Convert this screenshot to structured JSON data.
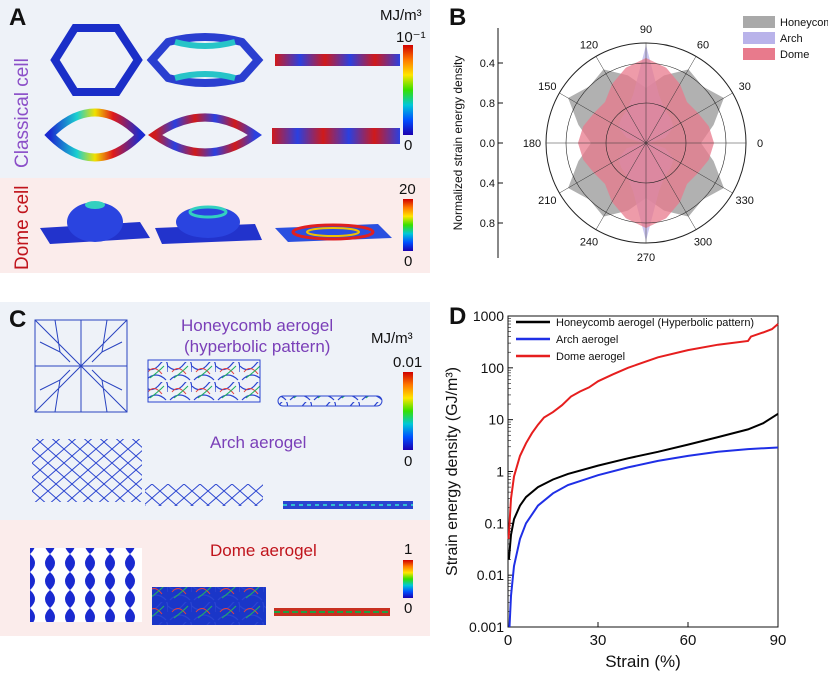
{
  "panels": {
    "A": {
      "letter": "A",
      "classical_label": "Classical cell",
      "dome_label": "Dome cell",
      "colorbar1": {
        "unit": "MJ/m³",
        "max": "10⁻¹",
        "min": "0"
      },
      "colorbar2": {
        "max": "20",
        "min": "0"
      }
    },
    "B": {
      "letter": "B"
    },
    "C": {
      "letter": "C",
      "honeycomb_title_1": "Honeycomb aerogel",
      "honeycomb_title_2": "(hyperbolic pattern)",
      "arch_title": "Arch aerogel",
      "dome_title": "Dome aerogel",
      "colorbar1": {
        "unit": "MJ/m³",
        "max": "0.01",
        "min": "0"
      },
      "colorbar2": {
        "max": "1",
        "min": "0"
      }
    },
    "D": {
      "letter": "D"
    }
  },
  "chart_data": [
    {
      "type": "polar-area",
      "ylabel": "Normalized strain energy density",
      "radial_ticks": [
        "0.4",
        "0.8",
        "0.0",
        "0.4",
        "0.8"
      ],
      "angle_ticks": [
        0,
        30,
        60,
        90,
        120,
        150,
        180,
        210,
        240,
        270,
        300,
        330
      ],
      "legend_position": "top-right",
      "series": [
        {
          "name": "Honeycomb",
          "color": "#a9a9a9",
          "angles": [
            0,
            15,
            30,
            45,
            60,
            75,
            90,
            105,
            120,
            135,
            150,
            165,
            180,
            195,
            210,
            225,
            240,
            255,
            270,
            285,
            300,
            315,
            330,
            345
          ],
          "r": [
            0.55,
            0.7,
            0.9,
            0.8,
            0.85,
            0.7,
            0.55,
            0.7,
            0.85,
            0.8,
            0.9,
            0.7,
            0.55,
            0.7,
            0.9,
            0.8,
            0.85,
            0.7,
            0.55,
            0.7,
            0.85,
            0.8,
            0.9,
            0.7
          ]
        },
        {
          "name": "Arch",
          "color": "#b9b3ea",
          "angles": [
            0,
            15,
            30,
            45,
            60,
            75,
            90,
            105,
            120,
            135,
            150,
            165,
            180,
            195,
            210,
            225,
            240,
            255,
            270,
            285,
            300,
            315,
            330,
            345
          ],
          "r": [
            0.02,
            0.2,
            0.32,
            0.35,
            0.38,
            0.5,
            0.98,
            0.5,
            0.38,
            0.35,
            0.32,
            0.2,
            0.02,
            0.2,
            0.32,
            0.35,
            0.38,
            0.5,
            0.98,
            0.5,
            0.38,
            0.35,
            0.32,
            0.2
          ]
        },
        {
          "name": "Dome",
          "color": "#e87a8c",
          "angles": [
            0,
            15,
            30,
            45,
            60,
            75,
            90,
            105,
            120,
            135,
            150,
            165,
            180,
            195,
            210,
            225,
            240,
            255,
            270,
            285,
            300,
            315,
            330,
            345
          ],
          "r": [
            0.68,
            0.65,
            0.6,
            0.58,
            0.68,
            0.78,
            0.85,
            0.78,
            0.68,
            0.58,
            0.6,
            0.65,
            0.68,
            0.65,
            0.6,
            0.58,
            0.68,
            0.78,
            0.85,
            0.78,
            0.68,
            0.58,
            0.6,
            0.65
          ]
        }
      ]
    },
    {
      "type": "line",
      "xlabel": "Strain (%)",
      "ylabel": "Strain energy density (GJ/m³)",
      "xlim": [
        0,
        90
      ],
      "ylim": [
        0.001,
        1000
      ],
      "yscale": "log",
      "xticks": [
        0,
        30,
        60,
        90
      ],
      "yticks": [
        0.001,
        0.01,
        0.1,
        1,
        10,
        100,
        1000
      ],
      "ytick_labels": [
        "0.001",
        "0.01",
        "0.1",
        "1",
        "10",
        "100",
        "1000"
      ],
      "legend_position": "top-left",
      "series": [
        {
          "name": "Honeycomb aerogel (Hyperbolic pattern)",
          "color": "#000000",
          "x": [
            0.3,
            1,
            2,
            4,
            6,
            10,
            15,
            20,
            30,
            40,
            50,
            60,
            70,
            80,
            85,
            90
          ],
          "y": [
            0.02,
            0.06,
            0.12,
            0.22,
            0.32,
            0.5,
            0.7,
            0.9,
            1.3,
            1.8,
            2.4,
            3.3,
            4.6,
            6.5,
            8.5,
            13
          ]
        },
        {
          "name": "Arch aerogel",
          "color": "#1f2fe6",
          "x": [
            0.5,
            1,
            2,
            4,
            6,
            10,
            15,
            20,
            30,
            40,
            50,
            60,
            70,
            80,
            90
          ],
          "y": [
            0.001,
            0.004,
            0.015,
            0.05,
            0.1,
            0.22,
            0.38,
            0.55,
            0.85,
            1.2,
            1.6,
            2.0,
            2.4,
            2.7,
            2.9
          ]
        },
        {
          "name": "Dome aerogel",
          "color": "#e61e1e",
          "x": [
            0.2,
            1,
            2,
            4,
            6,
            8,
            10,
            12,
            15,
            18,
            21,
            24,
            27,
            30,
            35,
            40,
            50,
            60,
            70,
            80,
            81,
            85,
            88,
            90
          ],
          "y": [
            0.05,
            0.3,
            0.8,
            2,
            3.5,
            5.5,
            8,
            11,
            14,
            19,
            28,
            35,
            42,
            55,
            75,
            100,
            160,
            220,
            280,
            330,
            400,
            480,
            560,
            700
          ]
        }
      ]
    }
  ]
}
